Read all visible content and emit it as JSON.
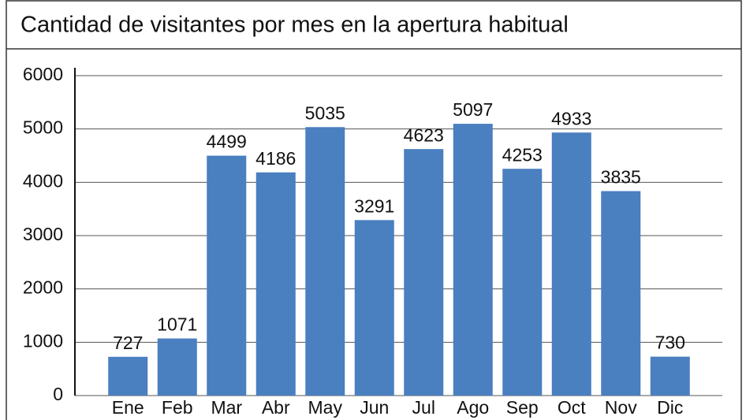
{
  "chart_data": {
    "type": "bar",
    "title": "Cantidad de visitantes por mes en la apertura habitual",
    "categories": [
      "Ene",
      "Feb",
      "Mar",
      "Abr",
      "May",
      "Jun",
      "Jul",
      "Ago",
      "Sep",
      "Oct",
      "Nov",
      "Dic"
    ],
    "values": [
      727,
      1071,
      4499,
      4186,
      5035,
      3291,
      4623,
      5097,
      4253,
      4933,
      3835,
      730
    ],
    "color": "#4a7fc0",
    "ylim": [
      0,
      6000
    ],
    "yticks": [
      0,
      1000,
      2000,
      3000,
      4000,
      5000,
      6000
    ],
    "grid": true
  }
}
